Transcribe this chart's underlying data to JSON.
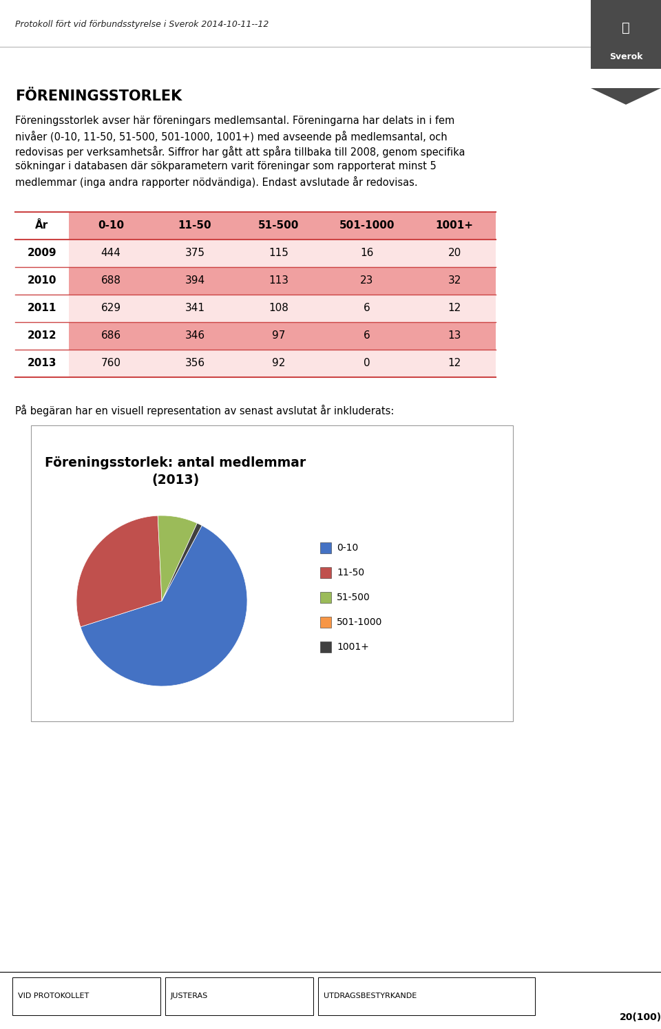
{
  "header_text": "Protokoll fört vid förbundsstyrelse i Sverok 2014-10-11--12",
  "title": "FÖRENINGSSTORLEK",
  "body_lines": [
    "Föreningsstorlek avser här föreningars medlemsantal. Föreningarna har delats in i fem",
    "nivåer (0-10, 11-50, 51-500, 501-1000, 1001+) med avseende på medlemsantal, och",
    "redovisas per verksamhetsår. Siffror har gått att spåra tillbaka till 2008, genom specifika",
    "sökningar i databasen där sökparametern varit föreningar som rapporterat minst 5",
    "medlemmar (inga andra rapporter nödvändiga). Endast avslutade år redovisas."
  ],
  "table_headers": [
    "År",
    "0-10",
    "11-50",
    "51-500",
    "501-1000",
    "1001+"
  ],
  "table_rows": [
    [
      "2009",
      "444",
      "375",
      "115",
      "16",
      "20"
    ],
    [
      "2010",
      "688",
      "394",
      "113",
      "23",
      "32"
    ],
    [
      "2011",
      "629",
      "341",
      "108",
      "6",
      "12"
    ],
    [
      "2012",
      "686",
      "346",
      "97",
      "6",
      "13"
    ],
    [
      "2013",
      "760",
      "356",
      "92",
      "0",
      "12"
    ]
  ],
  "row_color_light": "#fce4e4",
  "row_color_dark": "#f0a0a0",
  "header_row_color": "#f0a0a0",
  "separator_color": "#cc4444",
  "pre_chart_text": "På begäran har en visuell representation av senast avslutat år inkluderats:",
  "pie_title_line1": "Föreningsstorlek: antal medlemmar",
  "pie_title_line2": "(2013)",
  "pie_values": [
    760,
    356,
    92,
    0,
    12
  ],
  "pie_labels": [
    "0-10",
    "11-50",
    "51-500",
    "501-1000",
    "1001+"
  ],
  "pie_colors": [
    "#4472c4",
    "#c0504d",
    "#9bbb59",
    "#f79646",
    "#404040"
  ],
  "pie_startangle": 62,
  "footer_left": "VID PROTOKOLLET",
  "footer_mid": "JUSTERAS",
  "footer_right": "UTDRAGSBESTYRKANDE",
  "footer_page": "20(100)",
  "background_color": "#ffffff",
  "logo_bg": "#4a4a4a",
  "logo_arrow_bg": "#3a3a3a"
}
